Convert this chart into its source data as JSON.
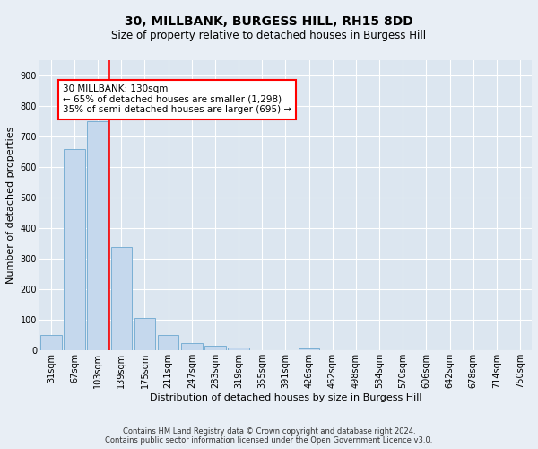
{
  "title": "30, MILLBANK, BURGESS HILL, RH15 8DD",
  "subtitle": "Size of property relative to detached houses in Burgess Hill",
  "xlabel": "Distribution of detached houses by size in Burgess Hill",
  "ylabel": "Number of detached properties",
  "footer_line1": "Contains HM Land Registry data © Crown copyright and database right 2024.",
  "footer_line2": "Contains public sector information licensed under the Open Government Licence v3.0.",
  "bar_labels": [
    "31sqm",
    "67sqm",
    "103sqm",
    "139sqm",
    "175sqm",
    "211sqm",
    "247sqm",
    "283sqm",
    "319sqm",
    "355sqm",
    "391sqm",
    "426sqm",
    "462sqm",
    "498sqm",
    "534sqm",
    "570sqm",
    "606sqm",
    "642sqm",
    "678sqm",
    "714sqm",
    "750sqm"
  ],
  "bar_values": [
    50,
    660,
    750,
    340,
    107,
    50,
    25,
    15,
    10,
    0,
    0,
    8,
    0,
    0,
    0,
    0,
    0,
    0,
    0,
    0,
    0
  ],
  "bar_color": "#c5d8ed",
  "bar_edge_color": "#7aafd4",
  "ylim": [
    0,
    950
  ],
  "yticks": [
    0,
    100,
    200,
    300,
    400,
    500,
    600,
    700,
    800,
    900
  ],
  "annotation_text_line1": "30 MILLBANK: 130sqm",
  "annotation_text_line2": "← 65% of detached houses are smaller (1,298)",
  "annotation_text_line3": "35% of semi-detached houses are larger (695) →",
  "bg_color": "#e8eef5",
  "plot_bg_color": "#dce6f0",
  "red_line_x": 2.5,
  "title_fontsize": 10,
  "subtitle_fontsize": 8.5,
  "tick_fontsize": 7,
  "ylabel_fontsize": 8,
  "xlabel_fontsize": 8,
  "annotation_fontsize": 7.5,
  "footer_fontsize": 6
}
